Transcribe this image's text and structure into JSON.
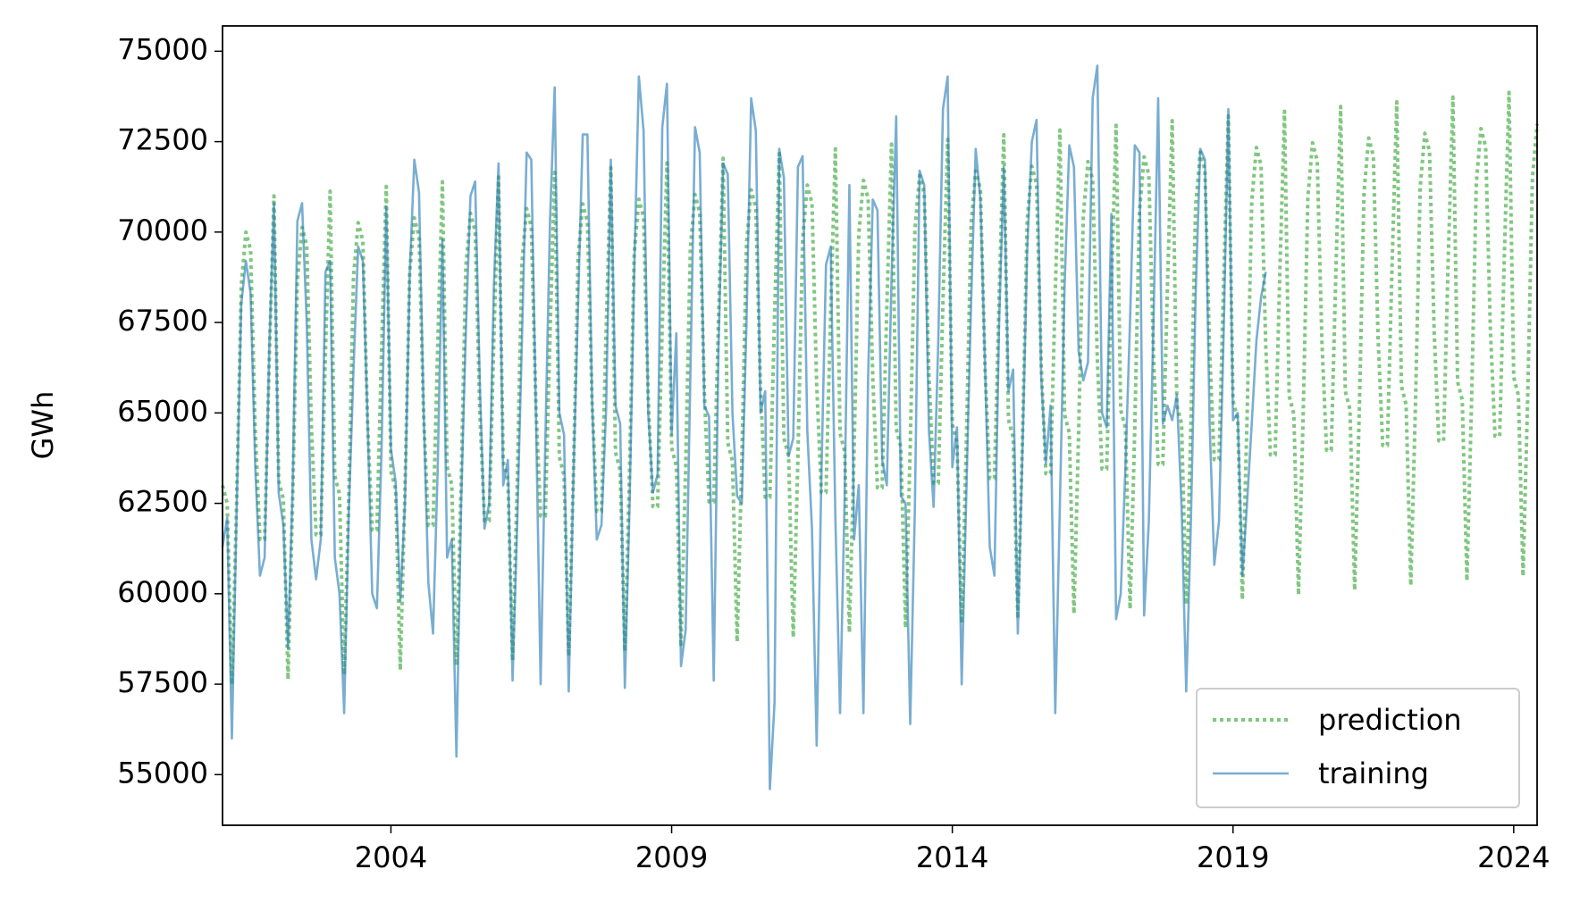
{
  "chart_data": {
    "type": "line",
    "ylabel": "GWh",
    "x": [
      "2001-01",
      "2001-02",
      "2001-03",
      "2001-04",
      "2001-05",
      "2001-06",
      "2001-07",
      "2001-08",
      "2001-09",
      "2001-10",
      "2001-11",
      "2001-12",
      "2002-01",
      "2002-02",
      "2002-03",
      "2002-04",
      "2002-05",
      "2002-06",
      "2002-07",
      "2002-08",
      "2002-09",
      "2002-10",
      "2002-11",
      "2002-12",
      "2003-01",
      "2003-02",
      "2003-03",
      "2003-04",
      "2003-05",
      "2003-06",
      "2003-07",
      "2003-08",
      "2003-09",
      "2003-10",
      "2003-11",
      "2003-12",
      "2004-01",
      "2004-02",
      "2004-03",
      "2004-04",
      "2004-05",
      "2004-06",
      "2004-07",
      "2004-08",
      "2004-09",
      "2004-10",
      "2004-11",
      "2004-12",
      "2005-01",
      "2005-02",
      "2005-03",
      "2005-04",
      "2005-05",
      "2005-06",
      "2005-07",
      "2005-08",
      "2005-09",
      "2005-10",
      "2005-11",
      "2005-12",
      "2006-01",
      "2006-02",
      "2006-03",
      "2006-04",
      "2006-05",
      "2006-06",
      "2006-07",
      "2006-08",
      "2006-09",
      "2006-10",
      "2006-11",
      "2006-12",
      "2007-01",
      "2007-02",
      "2007-03",
      "2007-04",
      "2007-05",
      "2007-06",
      "2007-07",
      "2007-08",
      "2007-09",
      "2007-10",
      "2007-11",
      "2007-12",
      "2008-01",
      "2008-02",
      "2008-03",
      "2008-04",
      "2008-05",
      "2008-06",
      "2008-07",
      "2008-08",
      "2008-09",
      "2008-10",
      "2008-11",
      "2008-12",
      "2009-01",
      "2009-02",
      "2009-03",
      "2009-04",
      "2009-05",
      "2009-06",
      "2009-07",
      "2009-08",
      "2009-09",
      "2009-10",
      "2009-11",
      "2009-12",
      "2010-01",
      "2010-02",
      "2010-03",
      "2010-04",
      "2010-05",
      "2010-06",
      "2010-07",
      "2010-08",
      "2010-09",
      "2010-10",
      "2010-11",
      "2010-12",
      "2011-01",
      "2011-02",
      "2011-03",
      "2011-04",
      "2011-05",
      "2011-06",
      "2011-07",
      "2011-08",
      "2011-09",
      "2011-10",
      "2011-11",
      "2011-12",
      "2012-01",
      "2012-02",
      "2012-03",
      "2012-04",
      "2012-05",
      "2012-06",
      "2012-07",
      "2012-08",
      "2012-09",
      "2012-10",
      "2012-11",
      "2012-12",
      "2013-01",
      "2013-02",
      "2013-03",
      "2013-04",
      "2013-05",
      "2013-06",
      "2013-07",
      "2013-08",
      "2013-09",
      "2013-10",
      "2013-11",
      "2013-12",
      "2014-01",
      "2014-02",
      "2014-03",
      "2014-04",
      "2014-05",
      "2014-06",
      "2014-07",
      "2014-08",
      "2014-09",
      "2014-10",
      "2014-11",
      "2014-12",
      "2015-01",
      "2015-02",
      "2015-03",
      "2015-04",
      "2015-05",
      "2015-06",
      "2015-07",
      "2015-08",
      "2015-09",
      "2015-10",
      "2015-11",
      "2015-12",
      "2016-01",
      "2016-02",
      "2016-03",
      "2016-04",
      "2016-05",
      "2016-06",
      "2016-07",
      "2016-08",
      "2016-09",
      "2016-10",
      "2016-11",
      "2016-12",
      "2017-01",
      "2017-02",
      "2017-03",
      "2017-04",
      "2017-05",
      "2017-06",
      "2017-07",
      "2017-08",
      "2017-09",
      "2017-10",
      "2017-11",
      "2017-12",
      "2018-01",
      "2018-02",
      "2018-03",
      "2018-04",
      "2018-05",
      "2018-06",
      "2018-07",
      "2018-08",
      "2018-09",
      "2018-10",
      "2018-11",
      "2018-12",
      "2019-01",
      "2019-02",
      "2019-03",
      "2019-04",
      "2019-05",
      "2019-06",
      "2019-07",
      "2019-08",
      "2019-09",
      "2019-10",
      "2019-11",
      "2019-12",
      "2020-01",
      "2020-02",
      "2020-03",
      "2020-04",
      "2020-05",
      "2020-06",
      "2020-07",
      "2020-08",
      "2020-09",
      "2020-10",
      "2020-11",
      "2020-12",
      "2021-01",
      "2021-02",
      "2021-03",
      "2021-04",
      "2021-05",
      "2021-06",
      "2021-07",
      "2021-08",
      "2021-09",
      "2021-10",
      "2021-11",
      "2021-12",
      "2022-01",
      "2022-02",
      "2022-03",
      "2022-04",
      "2022-05",
      "2022-06",
      "2022-07",
      "2022-08",
      "2022-09",
      "2022-10",
      "2022-11",
      "2022-12",
      "2023-01",
      "2023-02",
      "2023-03",
      "2023-04",
      "2023-05",
      "2023-06",
      "2023-07",
      "2023-08",
      "2023-09",
      "2023-10",
      "2023-11",
      "2023-12",
      "2024-01",
      "2024-02",
      "2024-03",
      "2024-04",
      "2024-05",
      "2024-06"
    ],
    "series": [
      {
        "name": "prediction",
        "color": "#2ca02c",
        "style": "dotted",
        "values": [
          63000,
          62500,
          57500,
          62500,
          68500,
          70000,
          69500,
          64500,
          61500,
          61500,
          66500,
          71000,
          63130,
          62630,
          57630,
          62630,
          68630,
          70130,
          69630,
          64630,
          61630,
          61630,
          66630,
          71130,
          63260,
          62760,
          57760,
          62760,
          68760,
          70260,
          69760,
          64760,
          61760,
          61760,
          66760,
          71260,
          63390,
          62890,
          57890,
          62890,
          68890,
          70390,
          69890,
          64890,
          61890,
          61890,
          66890,
          71390,
          63520,
          63020,
          58020,
          63020,
          69020,
          70520,
          70020,
          65020,
          62020,
          62020,
          67020,
          71520,
          63650,
          63150,
          58150,
          63150,
          69150,
          70650,
          70150,
          65150,
          62150,
          62150,
          67150,
          71650,
          63780,
          63280,
          58280,
          63280,
          69280,
          70780,
          70280,
          65280,
          62280,
          62280,
          67280,
          71780,
          63910,
          63410,
          58410,
          63410,
          69410,
          70910,
          70410,
          65410,
          62410,
          62410,
          67410,
          71910,
          64040,
          63540,
          58540,
          63540,
          69540,
          71040,
          70540,
          65540,
          62540,
          62540,
          67540,
          72040,
          64170,
          63670,
          58670,
          63670,
          69670,
          71170,
          70670,
          65670,
          62670,
          62670,
          67670,
          72170,
          64300,
          63800,
          58800,
          63800,
          69800,
          71300,
          70800,
          65800,
          62800,
          62800,
          67800,
          72300,
          64430,
          63930,
          58930,
          63930,
          69930,
          71430,
          70930,
          65930,
          62930,
          62930,
          67930,
          72430,
          64560,
          64060,
          59060,
          64060,
          70060,
          71560,
          71060,
          66060,
          63060,
          63060,
          68060,
          72560,
          64690,
          64190,
          59190,
          64190,
          70190,
          71690,
          71190,
          66190,
          63190,
          63190,
          68190,
          72690,
          64820,
          64320,
          59320,
          64320,
          70320,
          71820,
          71320,
          66320,
          63320,
          63320,
          68320,
          72820,
          64950,
          64450,
          59450,
          64450,
          70450,
          71950,
          71450,
          66450,
          63450,
          63450,
          68450,
          72950,
          65080,
          64580,
          59580,
          64580,
          70580,
          72080,
          71580,
          66580,
          63580,
          63580,
          68580,
          73080,
          65210,
          64710,
          59710,
          64710,
          70710,
          72210,
          71710,
          66710,
          63710,
          63710,
          68710,
          73210,
          65340,
          64840,
          59840,
          64840,
          70840,
          72340,
          71840,
          66840,
          63840,
          63840,
          68840,
          73340,
          65470,
          64970,
          59970,
          64970,
          70970,
          72470,
          71970,
          66970,
          63970,
          63970,
          68970,
          73470,
          65600,
          65100,
          60100,
          65100,
          71100,
          72600,
          72100,
          67100,
          64100,
          64100,
          69100,
          73600,
          65730,
          65230,
          60230,
          65230,
          71230,
          72730,
          72230,
          67230,
          64230,
          64230,
          69230,
          73730,
          65860,
          65360,
          60360,
          65360,
          71360,
          72860,
          72360,
          67360,
          64360,
          64360,
          69360,
          73860,
          65990,
          65490,
          60490,
          65490,
          71490,
          72990
        ]
      },
      {
        "name": "training",
        "color": "#1f77b4",
        "style": "solid",
        "values": [
          61300,
          62100,
          56000,
          62200,
          68000,
          69200,
          68300,
          63500,
          60500,
          61000,
          66800,
          70800,
          62800,
          61900,
          58500,
          63000,
          70300,
          70800,
          67500,
          61500,
          60400,
          61500,
          68900,
          69200,
          61000,
          60000,
          56700,
          62300,
          66200,
          69600,
          69200,
          64800,
          60000,
          59600,
          64000,
          70700,
          64000,
          63100,
          59800,
          62500,
          68800,
          72000,
          71100,
          65000,
          60300,
          58900,
          63500,
          69800,
          61000,
          61500,
          55500,
          62500,
          67200,
          71000,
          71400,
          65800,
          61800,
          62500,
          68500,
          71900,
          63000,
          63700,
          57600,
          62000,
          67000,
          72200,
          72000,
          64900,
          57500,
          64200,
          70300,
          74000,
          65000,
          64400,
          57300,
          63200,
          68000,
          72700,
          72700,
          65300,
          61500,
          61900,
          65100,
          72000,
          65200,
          64700,
          57400,
          62400,
          68900,
          74300,
          72800,
          65000,
          62800,
          63300,
          72900,
          74100,
          64400,
          67200,
          58000,
          59000,
          66000,
          72900,
          72200,
          65200,
          64900,
          57600,
          66700,
          71900,
          71600,
          65000,
          62700,
          62500,
          67500,
          73700,
          72800,
          65000,
          65600,
          54600,
          57000,
          72300,
          71500,
          63800,
          64300,
          71800,
          72100,
          64500,
          61800,
          55800,
          63200,
          69100,
          69600,
          62100,
          56700,
          62800,
          71300,
          61500,
          63000,
          56700,
          66000,
          70900,
          70600,
          63700,
          63000,
          68700,
          73200,
          62700,
          62500,
          56400,
          62400,
          71700,
          71300,
          64500,
          62400,
          67000,
          73400,
          74300,
          63500,
          64600,
          57500,
          62800,
          68000,
          72300,
          70900,
          66300,
          61300,
          60500,
          67500,
          71800,
          65600,
          66200,
          58900,
          64000,
          69500,
          72500,
          73100,
          66000,
          63600,
          65200,
          56700,
          62500,
          68500,
          72400,
          71800,
          66700,
          65900,
          66400,
          73700,
          74600,
          65000,
          64600,
          70500,
          59300,
          60000,
          63500,
          67600,
          72400,
          72200,
          59400,
          62000,
          67500,
          73700,
          64700,
          65200,
          64800,
          65500,
          62400,
          57300,
          62000,
          68200,
          72300,
          72000,
          64700,
          60800,
          62000,
          67200,
          73400,
          64800,
          65000,
          60500,
          62500,
          64700,
          67000,
          68200,
          68900,
          null,
          null,
          null,
          null,
          null,
          null,
          null,
          null,
          null,
          null,
          null,
          null,
          null,
          null,
          null,
          null,
          null,
          null,
          null,
          null,
          null,
          null,
          null,
          null,
          null,
          null,
          null,
          null,
          null,
          null,
          null,
          null,
          null,
          null,
          null,
          null,
          null,
          null,
          null,
          null,
          null,
          null,
          null,
          null,
          null,
          null,
          null,
          null,
          null,
          null,
          null,
          null,
          null,
          null,
          null,
          null,
          null,
          null
        ]
      }
    ],
    "xlim": [
      "2001-01",
      "2024-06"
    ],
    "xticks": [
      {
        "value": "2004-01",
        "label": "2004"
      },
      {
        "value": "2009-01",
        "label": "2009"
      },
      {
        "value": "2014-01",
        "label": "2014"
      },
      {
        "value": "2019-01",
        "label": "2019"
      },
      {
        "value": "2024-01",
        "label": "2024"
      }
    ],
    "ylim": [
      53600,
      75700
    ],
    "yticks": [
      55000,
      57500,
      60000,
      62500,
      65000,
      67500,
      70000,
      72500,
      75000
    ],
    "grid": false,
    "legend": "lower right"
  }
}
